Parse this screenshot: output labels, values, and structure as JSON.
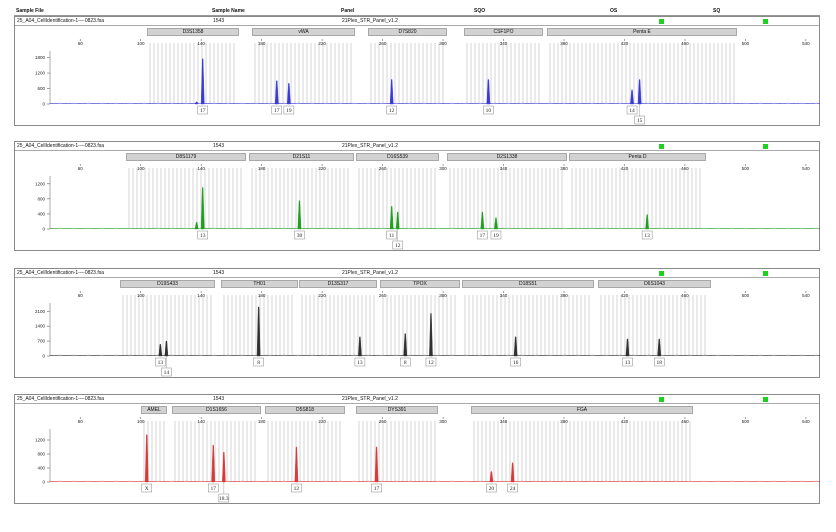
{
  "header": {
    "sample_file_label": "Sample File",
    "sample_name_label": "Sample Name",
    "panel_label": "Panel",
    "sqo_label": "SQO",
    "os_label": "OS",
    "sq_label": "SQ"
  },
  "colors": {
    "blue": "#3a3ad6",
    "green": "#1f9e1f",
    "black": "#303030",
    "red": "#d63a3a",
    "indicator": "#1fd11f"
  },
  "panels": [
    {
      "file": "25_A04_CellIdentification-1----0823.fsa",
      "sample_name": "1543",
      "panel_name": "21Plex_STR_Panel_v1.2",
      "markers": [
        "D3S1358",
        "vWA",
        "D7S820",
        "CSF1PO",
        "Penta E"
      ],
      "x_ticks": [
        "60",
        "100",
        "140",
        "180",
        "220",
        "260",
        "300",
        "340",
        "380",
        "420",
        "460",
        "500",
        "540"
      ],
      "y_ticks": [
        "1800",
        "1200",
        "600",
        "0"
      ],
      "alleles": [
        "17",
        "17",
        "19",
        "12",
        "10",
        "14",
        "15"
      ]
    },
    {
      "file": "25_A04_CellIdentification-1----0823.fsa",
      "sample_name": "1543",
      "panel_name": "21Plex_STR_Panel_v1.2",
      "markers": [
        "D8S1179",
        "D21S11",
        "D16S539",
        "D2S1338",
        "Penta D"
      ],
      "x_ticks": [
        "60",
        "100",
        "140",
        "180",
        "220",
        "260",
        "300",
        "340",
        "380",
        "420",
        "460",
        "500",
        "540"
      ],
      "y_ticks": [
        "1200",
        "800",
        "400",
        "0"
      ],
      "alleles": [
        "13",
        "30",
        "11",
        "12",
        "17",
        "19",
        "13"
      ]
    },
    {
      "file": "25_A04_CellIdentification-1----0823.fsa",
      "sample_name": "1543",
      "panel_name": "21Plex_STR_Panel_v1.2",
      "markers": [
        "D19S433",
        "TH01",
        "D13S317",
        "TPOX",
        "D18S51",
        "D6S1043"
      ],
      "x_ticks": [
        "60",
        "100",
        "140",
        "180",
        "220",
        "260",
        "300",
        "340",
        "380",
        "420",
        "460",
        "500",
        "540"
      ],
      "y_ticks": [
        "2100",
        "1400",
        "700",
        "0"
      ],
      "alleles": [
        "13",
        "14",
        "8",
        "13",
        "8",
        "12",
        "16",
        "13",
        "18"
      ]
    },
    {
      "file": "25_A04_CellIdentification-1----0823.fsa",
      "sample_name": "1543",
      "panel_name": "21Plex_STR_Panel_v1.2",
      "markers": [
        "AMEL",
        "D1S1656",
        "D5S818",
        "DYS391",
        "FGA"
      ],
      "x_ticks": [
        "60",
        "100",
        "140",
        "180",
        "220",
        "260",
        "300",
        "340",
        "380",
        "420",
        "460",
        "500",
        "540"
      ],
      "y_ticks": [
        "1200",
        "800",
        "400",
        "0"
      ],
      "alleles": [
        "X",
        "17",
        "18.3",
        "12",
        "17",
        "20",
        "24"
      ]
    }
  ],
  "chart_data": [
    {
      "type": "line",
      "xlim": [
        40,
        550
      ],
      "ylim": [
        0,
        1900
      ],
      "series": [
        {
          "color": "#3a3ad6",
          "peaks": [
            {
              "x": 141,
              "y": 1750,
              "allele": "17"
            },
            {
              "x": 137,
              "y": 80
            },
            {
              "x": 190,
              "y": 900,
              "allele": "17"
            },
            {
              "x": 198,
              "y": 800,
              "allele": "19"
            },
            {
              "x": 266,
              "y": 950,
              "allele": "12"
            },
            {
              "x": 330,
              "y": 950,
              "allele": "10"
            },
            {
              "x": 425,
              "y": 550,
              "allele": "14"
            },
            {
              "x": 430,
              "y": 950,
              "allele": "15"
            }
          ]
        }
      ]
    },
    {
      "type": "line",
      "xlim": [
        40,
        550
      ],
      "ylim": [
        0,
        1300
      ],
      "series": [
        {
          "color": "#1f9e1f",
          "peaks": [
            {
              "x": 141,
              "y": 1100,
              "allele": "13"
            },
            {
              "x": 137,
              "y": 180
            },
            {
              "x": 205,
              "y": 750,
              "allele": "30"
            },
            {
              "x": 266,
              "y": 600,
              "allele": "11"
            },
            {
              "x": 270,
              "y": 450,
              "allele": "12"
            },
            {
              "x": 326,
              "y": 450,
              "allele": "17"
            },
            {
              "x": 335,
              "y": 300,
              "allele": "19"
            },
            {
              "x": 435,
              "y": 380,
              "allele": "13"
            }
          ]
        }
      ]
    },
    {
      "type": "line",
      "xlim": [
        40,
        550
      ],
      "ylim": [
        0,
        2300
      ],
      "series": [
        {
          "color": "#303030",
          "peaks": [
            {
              "x": 113,
              "y": 550,
              "allele": "13"
            },
            {
              "x": 117,
              "y": 700,
              "allele": "14"
            },
            {
              "x": 178,
              "y": 2300,
              "allele": "8"
            },
            {
              "x": 245,
              "y": 900,
              "allele": "13"
            },
            {
              "x": 275,
              "y": 1050,
              "allele": "8"
            },
            {
              "x": 292,
              "y": 2000,
              "allele": "12"
            },
            {
              "x": 348,
              "y": 900,
              "allele": "16"
            },
            {
              "x": 422,
              "y": 800,
              "allele": "13"
            },
            {
              "x": 443,
              "y": 800,
              "allele": "18"
            }
          ]
        }
      ]
    },
    {
      "type": "line",
      "xlim": [
        40,
        550
      ],
      "ylim": [
        0,
        1400
      ],
      "series": [
        {
          "color": "#d63a3a",
          "peaks": [
            {
              "x": 104,
              "y": 1350,
              "allele": "X"
            },
            {
              "x": 148,
              "y": 1050,
              "allele": "17"
            },
            {
              "x": 155,
              "y": 850,
              "allele": "18.3"
            },
            {
              "x": 203,
              "y": 1000,
              "allele": "12"
            },
            {
              "x": 256,
              "y": 1000,
              "allele": "17"
            },
            {
              "x": 332,
              "y": 300,
              "allele": "20"
            },
            {
              "x": 346,
              "y": 550,
              "allele": "24"
            }
          ]
        }
      ]
    }
  ]
}
